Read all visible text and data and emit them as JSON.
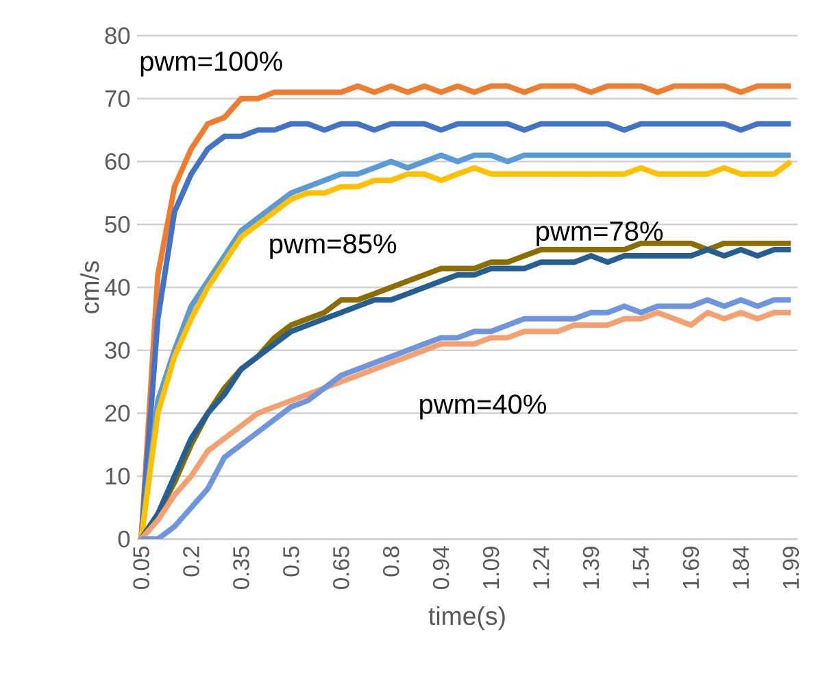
{
  "chart_data": {
    "type": "line",
    "xlabel": "time(s)",
    "ylabel": "cm/s",
    "categories": [
      "0.05",
      null,
      null,
      "0.2",
      null,
      null,
      "0.35",
      null,
      null,
      "0.5",
      null,
      null,
      "0.65",
      null,
      null,
      "0.8",
      null,
      null,
      "0.94",
      null,
      null,
      "1.09",
      null,
      null,
      "1.24",
      null,
      null,
      "1.39",
      null,
      null,
      "1.54",
      null,
      null,
      "1.69",
      null,
      null,
      "1.84",
      null,
      null,
      "1.99"
    ],
    "series": [
      {
        "color": "#ed7d31",
        "values": [
          0,
          42,
          56,
          62,
          66,
          67,
          70,
          70,
          71,
          71,
          71,
          71,
          71,
          72,
          71,
          72,
          71,
          72,
          71,
          72,
          71,
          72,
          72,
          71,
          72,
          72,
          72,
          71,
          72,
          72,
          72,
          71,
          72,
          72,
          72,
          72,
          71,
          72,
          72,
          72
        ]
      },
      {
        "color": "#4472c4",
        "values": [
          0,
          35,
          52,
          58,
          62,
          64,
          64,
          65,
          65,
          66,
          66,
          65,
          66,
          66,
          65,
          66,
          66,
          66,
          65,
          66,
          66,
          66,
          66,
          65,
          66,
          66,
          66,
          66,
          66,
          65,
          66,
          66,
          66,
          66,
          66,
          66,
          65,
          66,
          66,
          66
        ]
      },
      {
        "color": "#5b9bd5",
        "values": [
          0,
          22,
          30,
          37,
          41,
          45,
          49,
          51,
          53,
          55,
          56,
          57,
          58,
          58,
          59,
          60,
          59,
          60,
          61,
          60,
          61,
          61,
          60,
          61,
          61,
          61,
          61,
          61,
          61,
          61,
          61,
          61,
          61,
          61,
          61,
          61,
          61,
          61,
          61,
          61
        ]
      },
      {
        "color": "#ffc000",
        "values": [
          0,
          20,
          29,
          35,
          40,
          44,
          48,
          50,
          52,
          54,
          55,
          55,
          56,
          56,
          57,
          57,
          58,
          58,
          57,
          58,
          59,
          58,
          58,
          58,
          58,
          58,
          58,
          58,
          58,
          58,
          59,
          58,
          58,
          58,
          58,
          59,
          58,
          58,
          58,
          60
        ]
      },
      {
        "color": "#8c6d00",
        "values": [
          0,
          4,
          9,
          15,
          20,
          24,
          27,
          29,
          32,
          34,
          35,
          36,
          38,
          38,
          39,
          40,
          41,
          42,
          43,
          43,
          43,
          44,
          44,
          45,
          46,
          46,
          46,
          46,
          46,
          46,
          47,
          47,
          47,
          47,
          46,
          47,
          47,
          47,
          47,
          47
        ]
      },
      {
        "color": "#255e91",
        "values": [
          0,
          4,
          10,
          16,
          20,
          23,
          27,
          29,
          31,
          33,
          34,
          35,
          36,
          37,
          38,
          38,
          39,
          40,
          41,
          42,
          42,
          43,
          43,
          43,
          44,
          44,
          44,
          45,
          44,
          45,
          45,
          45,
          45,
          45,
          46,
          45,
          46,
          45,
          46,
          46
        ]
      },
      {
        "color": "#f4a070",
        "values": [
          0,
          3,
          7,
          10,
          14,
          16,
          18,
          20,
          21,
          22,
          23,
          24,
          25,
          26,
          27,
          28,
          29,
          30,
          31,
          31,
          31,
          32,
          32,
          33,
          33,
          33,
          34,
          34,
          34,
          35,
          35,
          36,
          35,
          34,
          36,
          35,
          36,
          35,
          36,
          36
        ]
      },
      {
        "color": "#6f96dc",
        "values": [
          0,
          0,
          2,
          5,
          8,
          13,
          15,
          17,
          19,
          21,
          22,
          24,
          26,
          27,
          28,
          29,
          30,
          31,
          32,
          32,
          33,
          33,
          34,
          35,
          35,
          35,
          35,
          36,
          36,
          37,
          36,
          37,
          37,
          37,
          38,
          37,
          38,
          37,
          38,
          38
        ]
      }
    ],
    "annotations": [
      "pwm=100%",
      "pwm=85%",
      "pwm=78%",
      "pwm=40%"
    ],
    "ylim": [
      0,
      80
    ],
    "yticks": [
      0,
      10,
      20,
      30,
      40,
      50,
      60,
      70,
      80
    ],
    "grid": "y",
    "marker": "none",
    "line_style": "solid"
  }
}
